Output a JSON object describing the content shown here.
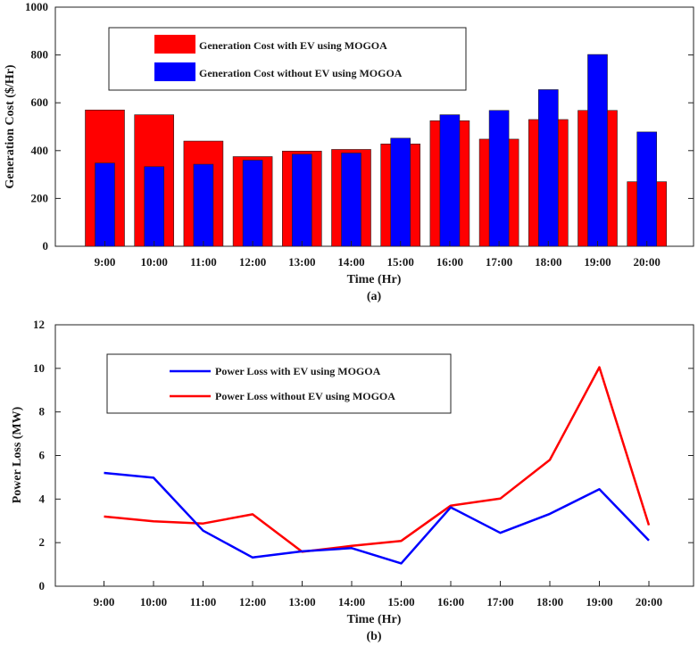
{
  "chart_data": [
    {
      "id": "a",
      "type": "bar",
      "caption": "(a)",
      "title": "",
      "xlabel": "Time (Hr)",
      "ylabel": "Generation Cost ($/Hr)",
      "ylim": [
        0,
        1000
      ],
      "yticks": [
        0,
        200,
        400,
        600,
        800,
        1000
      ],
      "categories": [
        "9:00",
        "10:00",
        "11:00",
        "12:00",
        "13:00",
        "14:00",
        "15:00",
        "16:00",
        "17:00",
        "18:00",
        "19:00",
        "20:00"
      ],
      "series": [
        {
          "name": "Generation Cost with EV using MOGOA",
          "color": "#ff0000",
          "values": [
            570,
            550,
            440,
            375,
            398,
            405,
            428,
            525,
            448,
            530,
            568,
            270
          ]
        },
        {
          "name": "Generation Cost without EV using MOGOA",
          "color": "#0000ff",
          "values": [
            348,
            333,
            343,
            360,
            385,
            390,
            452,
            550,
            568,
            655,
            802,
            478
          ]
        }
      ],
      "legend": "top-left",
      "grid": false
    },
    {
      "id": "b",
      "type": "line",
      "caption": "(b)",
      "title": "",
      "xlabel": "Time (Hr)",
      "ylabel": "Power Loss (MW)",
      "ylim": [
        0,
        12
      ],
      "yticks": [
        0,
        2,
        4,
        6,
        8,
        10,
        12
      ],
      "categories": [
        "9:00",
        "10:00",
        "11:00",
        "12:00",
        "13:00",
        "14:00",
        "15:00",
        "16:00",
        "17:00",
        "18:00",
        "19:00",
        "20:00"
      ],
      "series": [
        {
          "name": "Power Loss with EV using MOGOA",
          "color": "#0000ff",
          "values": [
            5.2,
            4.98,
            2.55,
            1.32,
            1.6,
            1.75,
            1.05,
            3.62,
            2.45,
            3.32,
            4.45,
            2.1
          ]
        },
        {
          "name": "Power Loss without EV using MOGOA",
          "color": "#ff0000",
          "values": [
            3.2,
            2.98,
            2.88,
            3.3,
            1.58,
            1.85,
            2.08,
            3.7,
            4.02,
            5.8,
            10.05,
            2.8
          ]
        }
      ],
      "legend": "top-left",
      "grid": false
    }
  ]
}
